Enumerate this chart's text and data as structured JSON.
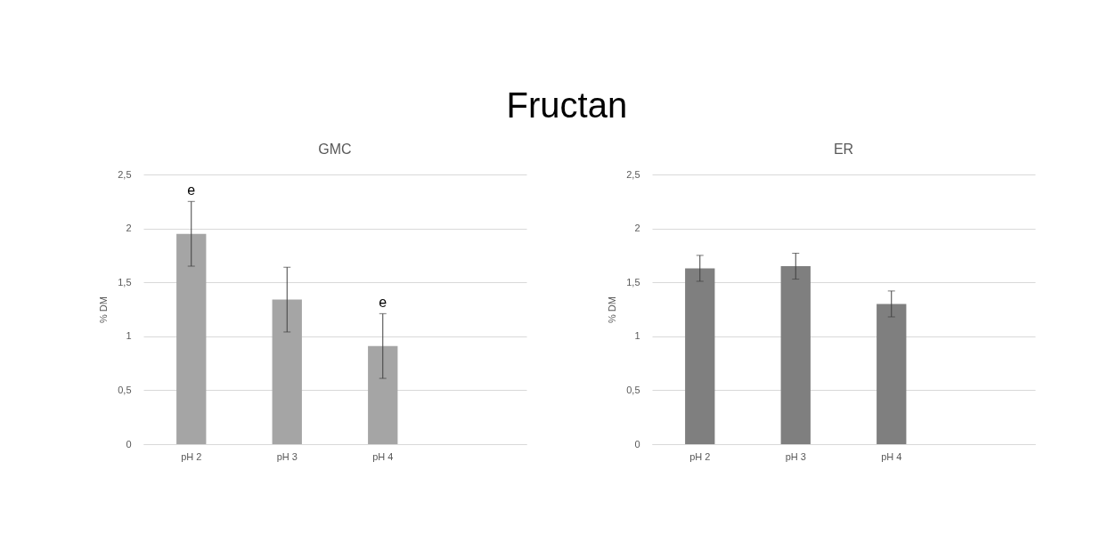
{
  "chart_data": [
    {
      "type": "bar",
      "title": "Fructan",
      "subtitle": "GMC",
      "ylabel": "% DM",
      "categories": [
        "pH 2",
        "pH 3",
        "pH 4",
        null
      ],
      "values": [
        1.95,
        1.34,
        0.91,
        null
      ],
      "errors": [
        0.3,
        0.3,
        0.3,
        null
      ],
      "color": "#a5a5a5",
      "ylim": [
        0,
        2.5
      ],
      "yticks": [
        0,
        {
          "value": 0.5,
          "label": "0,5"
        },
        1,
        {
          "value": 1.5,
          "label": "1,5"
        },
        2,
        {
          "value": 2.5,
          "label": "2,5"
        }
      ],
      "grid": "y",
      "annotations": [
        {
          "text": "e",
          "x": "pH 2",
          "y": 2.25
        },
        {
          "text": "e",
          "x": "pH 4",
          "y": 1.21
        }
      ]
    },
    {
      "type": "bar",
      "subtitle": "ER",
      "ylabel": "% DM",
      "categories": [
        "pH 2",
        "pH 3",
        "pH 4",
        null
      ],
      "values": [
        1.63,
        1.65,
        1.3,
        null
      ],
      "errors": [
        0.12,
        0.12,
        0.12,
        null
      ],
      "color": "#7f7f7f",
      "ylim": [
        0,
        2.5
      ],
      "yticks": [
        0,
        {
          "value": 0.5,
          "label": "0,5"
        },
        1,
        {
          "value": 1.5,
          "label": "1,5"
        },
        2,
        {
          "value": 2.5,
          "label": "2,5"
        }
      ],
      "grid": "y"
    }
  ]
}
